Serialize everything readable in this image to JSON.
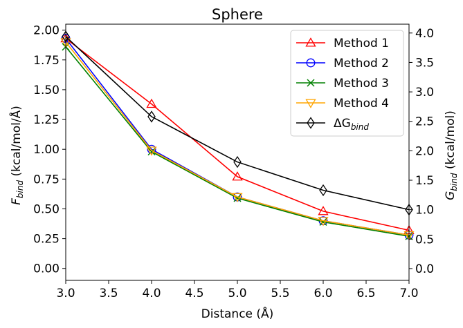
{
  "chart_data": {
    "type": "line",
    "title": "Sphere",
    "xlabel": "Distance (Å)",
    "ylabel_left": {
      "base": "F",
      "sub": "bind",
      "rest": " (kcal/mol/Å)"
    },
    "ylabel_right": {
      "base": "G",
      "sub": "bind",
      "rest": " (kcal/mol)"
    },
    "xlim": [
      3.0,
      7.0
    ],
    "ylim_left": [
      -0.1,
      2.05
    ],
    "ylim_right": [
      -0.2,
      4.15
    ],
    "xticks": [
      "3.0",
      "3.5",
      "4.0",
      "4.5",
      "5.0",
      "5.5",
      "6.0",
      "6.5",
      "7.0"
    ],
    "yticks_left": [
      "0.00",
      "0.25",
      "0.50",
      "0.75",
      "1.00",
      "1.25",
      "1.50",
      "1.75",
      "2.00"
    ],
    "yticks_right": [
      "0.0",
      "0.5",
      "1.0",
      "1.5",
      "2.0",
      "2.5",
      "3.0",
      "3.5",
      "4.0"
    ],
    "grid": false,
    "legend_position": "top-right",
    "x": [
      3.0,
      4.0,
      5.0,
      6.0,
      7.0
    ],
    "series": [
      {
        "name": "Method 1",
        "axis": "left",
        "color": "#ff0000",
        "marker": "triangle-up",
        "values": [
          1.93,
          1.38,
          0.77,
          0.48,
          0.32
        ]
      },
      {
        "name": "Method 2",
        "axis": "left",
        "color": "#0000ff",
        "marker": "circle",
        "values": [
          1.93,
          1.0,
          0.6,
          0.4,
          0.28
        ]
      },
      {
        "name": "Method 3",
        "axis": "left",
        "color": "#008000",
        "marker": "x",
        "values": [
          1.86,
          0.98,
          0.59,
          0.39,
          0.27
        ]
      },
      {
        "name": "Method 4",
        "axis": "left",
        "color": "#ffa500",
        "marker": "triangle-down",
        "values": [
          1.9,
          0.99,
          0.6,
          0.4,
          0.28
        ]
      },
      {
        "name": "ΔG",
        "name_sub": "bind",
        "axis": "right",
        "color": "#000000",
        "marker": "diamond",
        "values": [
          3.94,
          2.58,
          1.81,
          1.33,
          1.0
        ]
      }
    ]
  }
}
